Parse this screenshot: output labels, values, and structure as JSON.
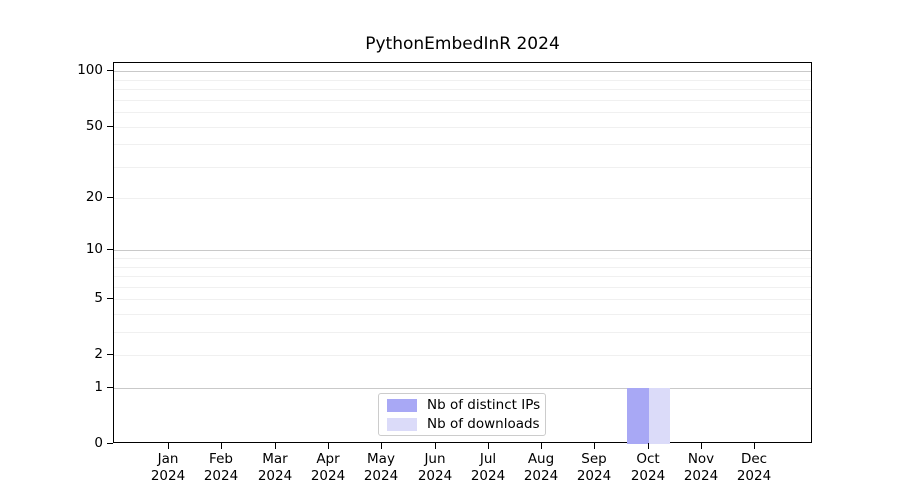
{
  "figure": {
    "background": "#ffffff"
  },
  "chart_data": {
    "type": "bar",
    "title": "PythonEmbedInR 2024",
    "categories": [
      "Jan",
      "Feb",
      "Mar",
      "Apr",
      "May",
      "Jun",
      "Jul",
      "Aug",
      "Sep",
      "Oct",
      "Nov",
      "Dec"
    ],
    "category_year": "2024",
    "series": [
      {
        "name": "Nb of distinct IPs",
        "color": "#a8a8f5",
        "values": [
          0,
          0,
          0,
          0,
          0,
          0,
          0,
          0,
          0,
          1,
          0,
          0
        ]
      },
      {
        "name": "Nb of downloads",
        "color": "#dbdbf9",
        "values": [
          0,
          0,
          0,
          0,
          0,
          0,
          0,
          0,
          0,
          1,
          0,
          0
        ]
      }
    ],
    "xlabel": "",
    "ylabel": "",
    "y_scale": "log1p",
    "y_max": 111,
    "y_axis_ticks": [
      0,
      1,
      2,
      5,
      10,
      20,
      50,
      100
    ],
    "gridlines": {
      "major": [
        1,
        10,
        100
      ],
      "minor": [
        2,
        3,
        4,
        5,
        6,
        7,
        8,
        9,
        20,
        30,
        40,
        50,
        60,
        70,
        80,
        90
      ],
      "major_color": "#c9c9c9",
      "minor_color": "#f0f0f0"
    },
    "legend": {
      "position": "lower center",
      "entries": [
        "Nb of distinct IPs",
        "Nb of downloads"
      ]
    }
  }
}
